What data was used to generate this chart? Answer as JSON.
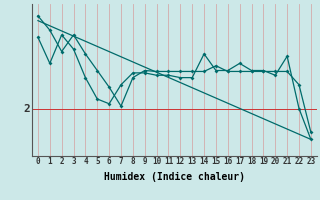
{
  "title": "",
  "xlabel": "Humidex (Indice chaleur)",
  "ylabel": "",
  "bg_color": "#cce8e8",
  "line_color": "#006b6b",
  "grid_color": "#d4aaaa",
  "ytick_labels": [
    "2"
  ],
  "ytick_positions": [
    2.0
  ],
  "xlim": [
    -0.5,
    23.5
  ],
  "ylim": [
    1.0,
    4.2
  ],
  "series1": [
    3.95,
    3.65,
    3.2,
    3.55,
    3.15,
    2.8,
    2.45,
    2.05,
    2.65,
    2.8,
    2.78,
    2.78,
    2.78,
    2.78,
    2.78,
    2.9,
    2.78,
    2.78,
    2.78,
    2.78,
    2.78,
    2.78,
    2.5,
    1.5
  ],
  "series2": [
    3.5,
    2.95,
    3.55,
    3.25,
    2.65,
    2.2,
    2.1,
    2.5,
    2.75,
    2.75,
    2.7,
    2.7,
    2.65,
    2.65,
    3.15,
    2.8,
    2.8,
    2.95,
    2.8,
    2.8,
    2.7,
    3.1,
    2.0,
    1.35
  ],
  "trend_x": [
    0,
    23
  ],
  "trend_y": [
    3.85,
    1.35
  ],
  "hline_y": 2.0,
  "hline_color": "#cc3333",
  "xlabel_fontsize": 7,
  "ytick_fontsize": 8,
  "xtick_fontsize": 5.5
}
